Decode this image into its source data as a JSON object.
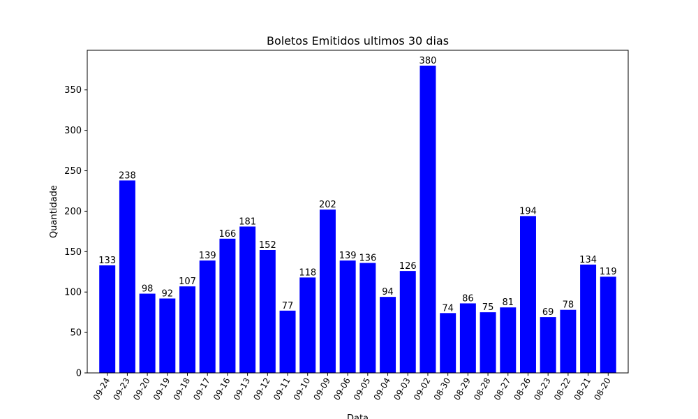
{
  "chart_data": {
    "type": "bar",
    "title": "Boletos Emitidos ultimos 30 dias",
    "xlabel": "Data",
    "ylabel": "Quantidade",
    "categories": [
      "09-24",
      "09-23",
      "09-20",
      "09-19",
      "09-18",
      "09-17",
      "09-16",
      "09-13",
      "09-12",
      "09-11",
      "09-10",
      "09-09",
      "09-06",
      "09-05",
      "09-04",
      "09-03",
      "09-02",
      "08-30",
      "08-29",
      "08-28",
      "08-27",
      "08-26",
      "08-23",
      "08-22",
      "08-21",
      "08-20"
    ],
    "values": [
      133,
      238,
      98,
      92,
      107,
      139,
      166,
      181,
      152,
      77,
      118,
      202,
      139,
      136,
      94,
      126,
      380,
      74,
      86,
      75,
      81,
      194,
      69,
      78,
      134,
      119
    ],
    "ylim": [
      0,
      399
    ],
    "yticks": [
      0,
      50,
      100,
      150,
      200,
      250,
      300,
      350
    ],
    "bar_color": "#0000ff",
    "grid": false,
    "data_labels": true
  }
}
